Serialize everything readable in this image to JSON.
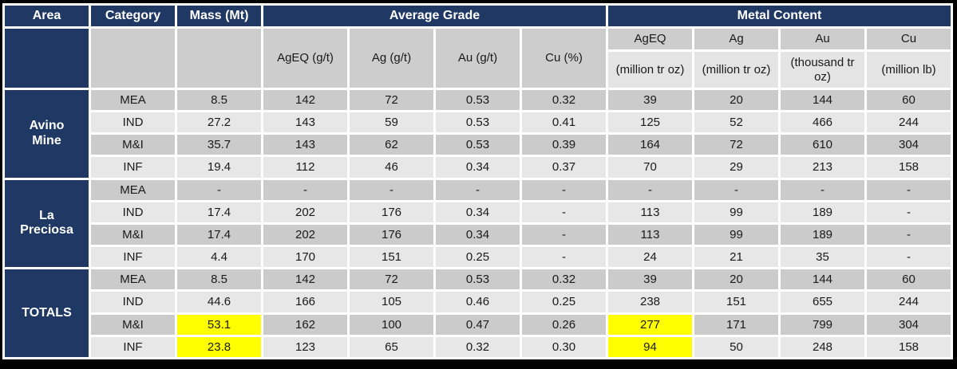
{
  "table": {
    "header": {
      "area": "Area",
      "category": "Category",
      "mass": "Mass (Mt)",
      "average_grade": "Average Grade",
      "metal_content": "Metal Content"
    },
    "grade_subheaders": [
      "AgEQ (g/t)",
      "Ag (g/t)",
      "Au (g/t)",
      "Cu (%)"
    ],
    "metal_subheaders": [
      {
        "symbol": "AgEQ",
        "unit": "(million tr oz)"
      },
      {
        "symbol": "Ag",
        "unit": "(million tr oz)"
      },
      {
        "symbol": "Au",
        "unit": "(thousand tr oz)"
      },
      {
        "symbol": "Cu",
        "unit": "(million lb)"
      }
    ],
    "groups": [
      {
        "name": "Avino\nMine",
        "rows": [
          {
            "category": "MEA",
            "values": [
              "8.5",
              "142",
              "72",
              "0.53",
              "0.32",
              "39",
              "20",
              "144",
              "60"
            ],
            "highlight": []
          },
          {
            "category": "IND",
            "values": [
              "27.2",
              "143",
              "59",
              "0.53",
              "0.41",
              "125",
              "52",
              "466",
              "244"
            ],
            "highlight": []
          },
          {
            "category": "M&I",
            "values": [
              "35.7",
              "143",
              "62",
              "0.53",
              "0.39",
              "164",
              "72",
              "610",
              "304"
            ],
            "highlight": []
          },
          {
            "category": "INF",
            "values": [
              "19.4",
              "112",
              "46",
              "0.34",
              "0.37",
              "70",
              "29",
              "213",
              "158"
            ],
            "highlight": []
          }
        ]
      },
      {
        "name": "La\nPreciosa",
        "rows": [
          {
            "category": "MEA",
            "values": [
              "-",
              "-",
              "-",
              "-",
              "-",
              "-",
              "-",
              "-",
              "-"
            ],
            "highlight": []
          },
          {
            "category": "IND",
            "values": [
              "17.4",
              "202",
              "176",
              "0.34",
              "-",
              "113",
              "99",
              "189",
              "-"
            ],
            "highlight": []
          },
          {
            "category": "M&I",
            "values": [
              "17.4",
              "202",
              "176",
              "0.34",
              "-",
              "113",
              "99",
              "189",
              "-"
            ],
            "highlight": []
          },
          {
            "category": "INF",
            "values": [
              "4.4",
              "170",
              "151",
              "0.25",
              "-",
              "24",
              "21",
              "35",
              "-"
            ],
            "highlight": []
          }
        ]
      },
      {
        "name": "TOTALS",
        "rows": [
          {
            "category": "MEA",
            "values": [
              "8.5",
              "142",
              "72",
              "0.53",
              "0.32",
              "39",
              "20",
              "144",
              "60"
            ],
            "highlight": []
          },
          {
            "category": "IND",
            "values": [
              "44.6",
              "166",
              "105",
              "0.46",
              "0.25",
              "238",
              "151",
              "655",
              "244"
            ],
            "highlight": []
          },
          {
            "category": "M&I",
            "values": [
              "53.1",
              "162",
              "100",
              "0.47",
              "0.26",
              "277",
              "171",
              "799",
              "304"
            ],
            "highlight": [
              0,
              5
            ]
          },
          {
            "category": "INF",
            "values": [
              "23.8",
              "123",
              "65",
              "0.32",
              "0.30",
              "94",
              "50",
              "248",
              "158"
            ],
            "highlight": [
              0,
              5
            ]
          }
        ]
      }
    ],
    "colors": {
      "navy": "#1f3864",
      "row_dark": "#cbcbcb",
      "row_light": "#e7e7e7",
      "subheader": "#cdcdcd",
      "subheader_light": "#e4e4e4",
      "highlight": "#ffff00",
      "frame": "#000000"
    }
  }
}
